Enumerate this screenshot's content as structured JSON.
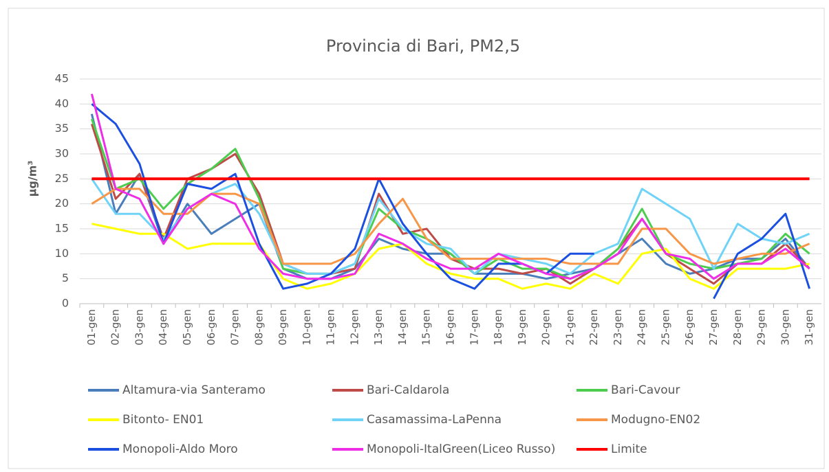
{
  "chart_data": {
    "type": "line",
    "title": "Provincia di Bari, PM2,5",
    "y_label": "µg/m³",
    "categories": [
      "01-gen",
      "02-gen",
      "03-gen",
      "04-gen",
      "05-gen",
      "06-gen",
      "07-gen",
      "08-gen",
      "09-gen",
      "10-gen",
      "11-gen",
      "12-gen",
      "13-gen",
      "14-gen",
      "15-gen",
      "16-gen",
      "17-gen",
      "18-gen",
      "19-gen",
      "20-gen",
      "21-gen",
      "22-gen",
      "23-gen",
      "24-gen",
      "25-gen",
      "26-gen",
      "27-gen",
      "28-gen",
      "29-gen",
      "30-gen",
      "31-gen"
    ],
    "ylim": [
      0,
      45
    ],
    "yticks": [
      0,
      5,
      10,
      15,
      20,
      25,
      30,
      35,
      40,
      45
    ],
    "grid": true,
    "series": [
      {
        "name": "Altamura-via Santeramo",
        "color": "#4a7ebb",
        "values": [
          38,
          18,
          26,
          12,
          20,
          14,
          17,
          20,
          7,
          5,
          5,
          7,
          13,
          11,
          10,
          10,
          6,
          6,
          6,
          5,
          6,
          7,
          10,
          13,
          8,
          6,
          7,
          9,
          9,
          13,
          7
        ]
      },
      {
        "name": "Bari-Caldarola",
        "color": "#be4b48",
        "values": [
          36,
          21,
          26,
          13,
          25,
          27,
          30,
          22,
          8,
          6,
          6,
          7,
          22,
          14,
          15,
          9,
          7,
          7,
          6,
          7,
          4,
          7,
          11,
          17,
          10,
          7,
          4,
          8,
          8,
          12,
          7
        ]
      },
      {
        "name": "Bari-Cavour",
        "color": "#4ccd50",
        "values": [
          37,
          23,
          25,
          19,
          24,
          27,
          31,
          21,
          7,
          6,
          6,
          8,
          19,
          15,
          13,
          10,
          6,
          9,
          7,
          7,
          5,
          7,
          11,
          19,
          10,
          8,
          7,
          8,
          9,
          14,
          10
        ]
      },
      {
        "name": "Bitonto- EN01",
        "color": "#ffff00",
        "values": [
          16,
          15,
          14,
          14,
          11,
          12,
          12,
          12,
          5,
          3,
          4,
          6,
          11,
          12,
          8,
          6,
          5,
          5,
          3,
          4,
          3,
          6,
          4,
          10,
          11,
          5,
          3,
          7,
          7,
          7,
          8
        ]
      },
      {
        "name": "Casamassima-LaPenna",
        "color": "#6fd3f8",
        "values": [
          25,
          18,
          18,
          13,
          19,
          22,
          24,
          18,
          8,
          6,
          6,
          8,
          21,
          15,
          12,
          11,
          6,
          10,
          9,
          8,
          6,
          10,
          12,
          23,
          20,
          17,
          7,
          16,
          13,
          12,
          14
        ]
      },
      {
        "name": "Modugno-EN02",
        "color": "#f79646",
        "values": [
          20,
          23,
          23,
          18,
          18,
          22,
          22,
          20,
          8,
          8,
          8,
          10,
          16,
          21,
          13,
          9,
          9,
          9,
          9,
          9,
          8,
          8,
          8,
          15,
          15,
          10,
          8,
          9,
          10,
          10,
          12
        ]
      },
      {
        "name": "Monopoli-Aldo Moro",
        "color": "#1a4fe0",
        "values": [
          40,
          36,
          28,
          12,
          24,
          23,
          26,
          12,
          3,
          4,
          6,
          11,
          25,
          16,
          10,
          5,
          3,
          8,
          8,
          6,
          10,
          10,
          null,
          null,
          null,
          null,
          1,
          10,
          13,
          18,
          3
        ]
      },
      {
        "name": "Monopoli-ItalGreen(Liceo Russo)",
        "color": "#ee2ee6",
        "values": [
          42,
          23,
          21,
          12,
          19,
          22,
          20,
          11,
          6,
          5,
          5,
          6,
          14,
          12,
          9,
          7,
          7,
          10,
          8,
          6,
          5,
          7,
          10,
          17,
          10,
          9,
          5,
          8,
          8,
          11,
          7
        ]
      },
      {
        "name": "Limite",
        "color": "#ff0000",
        "values": [
          25,
          25,
          25,
          25,
          25,
          25,
          25,
          25,
          25,
          25,
          25,
          25,
          25,
          25,
          25,
          25,
          25,
          25,
          25,
          25,
          25,
          25,
          25,
          25,
          25,
          25,
          25,
          25,
          25,
          25,
          25
        ]
      }
    ]
  }
}
